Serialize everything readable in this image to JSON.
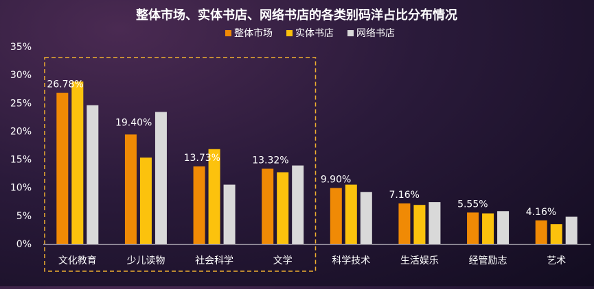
{
  "chart_data": {
    "type": "bar",
    "title": "整体市场、实体书店、网络书店的各类别码洋占比分布情况",
    "categories": [
      "文化教育",
      "少儿读物",
      "社会科学",
      "文学",
      "科学技术",
      "生活娱乐",
      "经管励志",
      "艺术"
    ],
    "series": [
      {
        "name": "整体市场",
        "values": [
          26.78,
          19.4,
          13.73,
          13.32,
          9.9,
          7.16,
          5.55,
          4.16
        ]
      },
      {
        "name": "实体书店",
        "values": [
          28.8,
          15.3,
          16.8,
          12.7,
          10.5,
          6.9,
          5.4,
          3.5
        ]
      },
      {
        "name": "网络书店",
        "values": [
          24.6,
          23.4,
          10.5,
          13.9,
          9.2,
          7.4,
          5.8,
          4.8
        ]
      }
    ],
    "data_labels": [
      "26.78%",
      "19.40%",
      "13.73%",
      "13.32%",
      "9.90%",
      "7.16%",
      "5.55%",
      "4.16%"
    ],
    "y_ticks": [
      "0%",
      "5%",
      "10%",
      "15%",
      "20%",
      "25%",
      "30%",
      "35%"
    ],
    "ylim": [
      0,
      35
    ],
    "legend_position": "top-center",
    "highlight_box_categories": [
      "文化教育",
      "少儿读物",
      "社会科学",
      "文学"
    ],
    "colors": {
      "series": [
        "#f08a05",
        "#fcc20d",
        "#d9d9d9"
      ],
      "text": "#ffffff",
      "axis": "#ffffff",
      "highlight_box": "#f0b030"
    }
  }
}
